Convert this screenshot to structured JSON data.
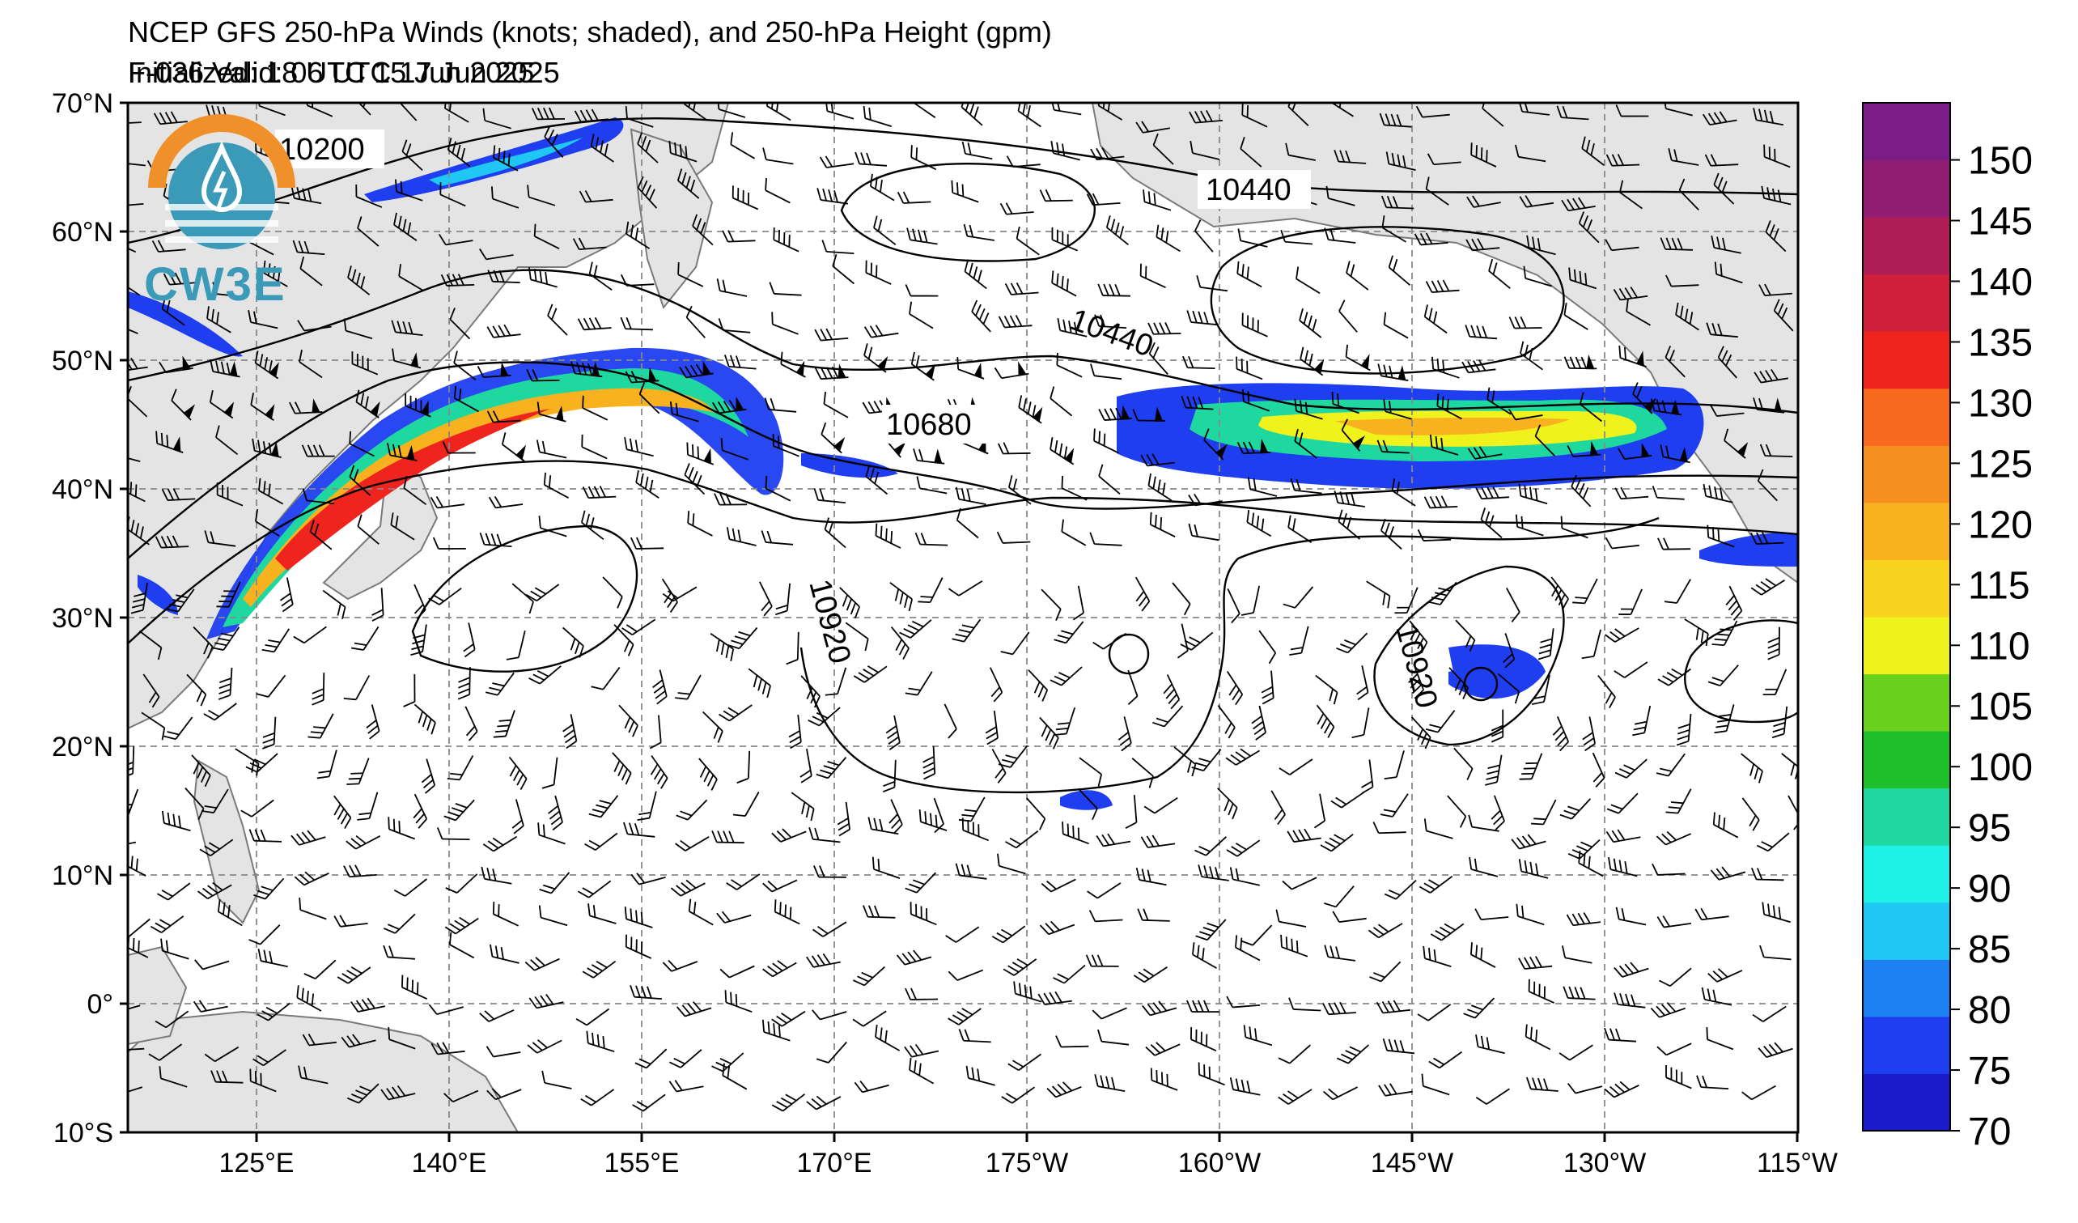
{
  "header": {
    "title": "NCEP GFS 250-hPa Winds (knots; shaded), and 250-hPa Height (gpm)",
    "initialized": "Initialized: 18 UTC 15 Jun 2025",
    "valid": "F-036  Valid: 06 UTC 17 Jun 2025"
  },
  "logo": {
    "text": "CW3E",
    "icon": "water-drop-logo-icon"
  },
  "map": {
    "lat_labels": [
      "70°N",
      "60°N",
      "50°N",
      "40°N",
      "30°N",
      "20°N",
      "10°N",
      "0°",
      "10°S"
    ],
    "lon_labels": [
      "125°E",
      "140°E",
      "155°E",
      "170°E",
      "175°W",
      "160°W",
      "145°W",
      "130°W",
      "115°W"
    ],
    "height_contour_labels": [
      "10200",
      "10440",
      "10440",
      "10680",
      "10920",
      "10920"
    ],
    "wind_barbs_icon": "wind-barb-icon",
    "land_color": "#e4e4e4",
    "coast_color": "#7a7a7a"
  },
  "colorbar": {
    "labels": [
      "70",
      "75",
      "80",
      "85",
      "90",
      "95",
      "100",
      "105",
      "110",
      "115",
      "120",
      "125",
      "130",
      "135",
      "140",
      "145",
      "150"
    ],
    "colors": [
      "#1b1bc9",
      "#1f3ef0",
      "#1c7ff2",
      "#20c6f4",
      "#1ff0e6",
      "#1fd8a0",
      "#1ebf2a",
      "#6ad11f",
      "#f0f21e",
      "#f7d21e",
      "#f8b11f",
      "#f58f1e",
      "#f86a1e",
      "#f0241e",
      "#cf1f3b",
      "#b01d56",
      "#911d72",
      "#7a1d86"
    ]
  }
}
